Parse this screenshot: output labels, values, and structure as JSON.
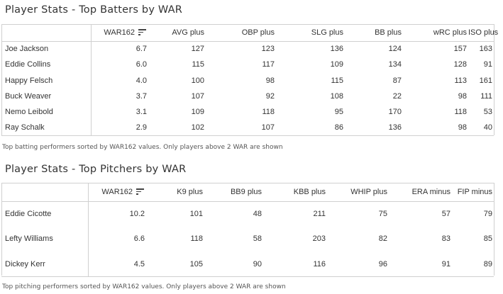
{
  "batters": {
    "title": "Player Stats - Top Batters by WAR",
    "columns": [
      "WAR162",
      "AVG plus",
      "OBP plus",
      "SLG plus",
      "BB plus",
      "wRC plus",
      "ISO plus"
    ],
    "rows": [
      {
        "name": "Joe Jackson",
        "values": [
          "6.7",
          "127",
          "123",
          "136",
          "124",
          "157",
          "163"
        ]
      },
      {
        "name": "Eddie Collins",
        "values": [
          "6.0",
          "115",
          "117",
          "109",
          "134",
          "128",
          "91"
        ]
      },
      {
        "name": "Happy Felsch",
        "values": [
          "4.0",
          "100",
          "98",
          "115",
          "87",
          "113",
          "161"
        ]
      },
      {
        "name": "Buck Weaver",
        "values": [
          "3.7",
          "107",
          "92",
          "108",
          "22",
          "98",
          "111"
        ]
      },
      {
        "name": "Nemo Leibold",
        "values": [
          "3.1",
          "109",
          "118",
          "95",
          "170",
          "118",
          "53"
        ]
      },
      {
        "name": "Ray Schalk",
        "values": [
          "2.9",
          "102",
          "107",
          "86",
          "136",
          "98",
          "40"
        ]
      }
    ],
    "caption": "Top batting performers sorted by WAR162 values. Only players above 2 WAR are shown"
  },
  "pitchers": {
    "title": "Player Stats - Top Pitchers by WAR",
    "columns": [
      "WAR162",
      "K9 plus",
      "BB9 plus",
      "KBB plus",
      "WHIP plus",
      "ERA minus",
      "FIP minus"
    ],
    "rows": [
      {
        "name": "Eddie Cicotte",
        "values": [
          "10.2",
          "101",
          "48",
          "211",
          "75",
          "57",
          "79"
        ]
      },
      {
        "name": "Lefty Williams",
        "values": [
          "6.6",
          "118",
          "58",
          "203",
          "82",
          "83",
          "85"
        ]
      },
      {
        "name": "Dickey Kerr",
        "values": [
          "4.5",
          "105",
          "90",
          "116",
          "96",
          "91",
          "89"
        ]
      }
    ],
    "caption": "Top pitching performers sorted by WAR162 values. Only players above 2 WAR are shown"
  },
  "icons": {
    "sort": "sort-descending-icon"
  }
}
